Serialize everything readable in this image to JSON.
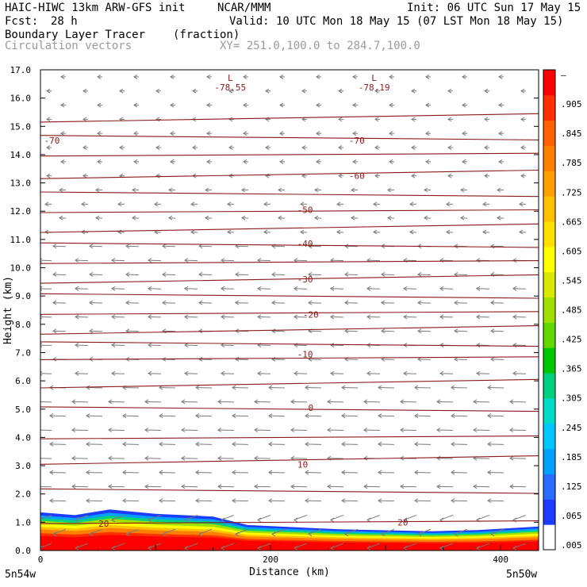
{
  "header": {
    "model": "HAIC-HIWC 13km ARW-GFS init",
    "org": "NCAR/MMM",
    "init": "Init: 06 UTC Sun 17 May 15",
    "fcst_label": "Fcst:",
    "fcst_value": "28 h",
    "valid": "Valid: 10 UTC Mon 18 May 15 (07 LST Mon 18 May 15)",
    "field": "Boundary Layer Tracer",
    "units": "(fraction)",
    "vectors": "Circulation vectors",
    "xy": "XY= 251.0,100.0 to 284.7,100.0"
  },
  "axes": {
    "ylabel": "Height (km)",
    "xlabel": "Distance (km)",
    "left_point": "5n54w",
    "right_point": "5n50w"
  },
  "colors": {
    "contour": "#8b1a1a",
    "vector": "#7a7a7a",
    "colorbar": [
      "#ffffff",
      "#1e3cff",
      "#2a6cff",
      "#00a0ff",
      "#00c8ff",
      "#00dcc8",
      "#00d080",
      "#00c800",
      "#60d800",
      "#a0e000",
      "#d8e800",
      "#ffff00",
      "#ffe000",
      "#ffc000",
      "#ffa000",
      "#ff8000",
      "#ff6000",
      "#ff3000",
      "#ff0000"
    ]
  },
  "chart_data": {
    "type": "vertical cross-section",
    "xlim": [
      0,
      433
    ],
    "ylim": [
      0,
      17
    ],
    "yticks": [
      "0.0",
      "1.0",
      "2.0",
      "3.0",
      "4.0",
      "5.0",
      "6.0",
      "7.0",
      "8.0",
      "9.0",
      "10.0",
      "11.0",
      "12.0",
      "13.0",
      "14.0",
      "15.0",
      "16.0",
      "17.0"
    ],
    "xticks": [
      {
        "value": 0,
        "label": "0"
      },
      {
        "value": 200,
        "label": "200"
      },
      {
        "value": 400,
        "label": "400"
      }
    ],
    "colorbar_labels": [
      ".005",
      ".065",
      ".125",
      ".185",
      ".245",
      ".305",
      ".365",
      ".425",
      ".485",
      ".545",
      ".605",
      ".665",
      ".725",
      ".785",
      ".845",
      ".905",
      "–"
    ],
    "contour_labels": [
      {
        "x": 10,
        "y": 14.5,
        "text": "-70"
      },
      {
        "x": 275,
        "y": 14.5,
        "text": "-70"
      },
      {
        "x": 275,
        "y": 13.25,
        "text": "-60"
      },
      {
        "x": 230,
        "y": 12.05,
        "text": "-50"
      },
      {
        "x": 230,
        "y": 10.85,
        "text": "-40"
      },
      {
        "x": 230,
        "y": 9.6,
        "text": "-30"
      },
      {
        "x": 235,
        "y": 8.35,
        "text": "-20"
      },
      {
        "x": 230,
        "y": 6.95,
        "text": "-10"
      },
      {
        "x": 235,
        "y": 5.05,
        "text": "0"
      },
      {
        "x": 228,
        "y": 3.05,
        "text": "10"
      },
      {
        "x": 55,
        "y": 0.95,
        "text": "20"
      },
      {
        "x": 315,
        "y": 1.0,
        "text": "20"
      }
    ],
    "lows": [
      {
        "x": 165,
        "y": 16.5,
        "value": "-78.55"
      },
      {
        "x": 290,
        "y": 16.5,
        "value": "-78.19"
      }
    ],
    "isotherm_heights_km": [
      15.3,
      14.6,
      14.0,
      13.3,
      12.6,
      12.0,
      11.4,
      10.8,
      10.2,
      9.6,
      9.0,
      8.4,
      7.8,
      7.3,
      6.8,
      5.9,
      5.0,
      4.0,
      3.2,
      2.1,
      1.0
    ],
    "tracer_top_km": [
      {
        "x": 0,
        "y": 1.35
      },
      {
        "x": 30,
        "y": 1.25
      },
      {
        "x": 60,
        "y": 1.45
      },
      {
        "x": 100,
        "y": 1.3
      },
      {
        "x": 150,
        "y": 1.2
      },
      {
        "x": 180,
        "y": 0.9
      },
      {
        "x": 260,
        "y": 0.75
      },
      {
        "x": 340,
        "y": 0.68
      },
      {
        "x": 380,
        "y": 0.72
      },
      {
        "x": 433,
        "y": 0.85
      }
    ]
  }
}
